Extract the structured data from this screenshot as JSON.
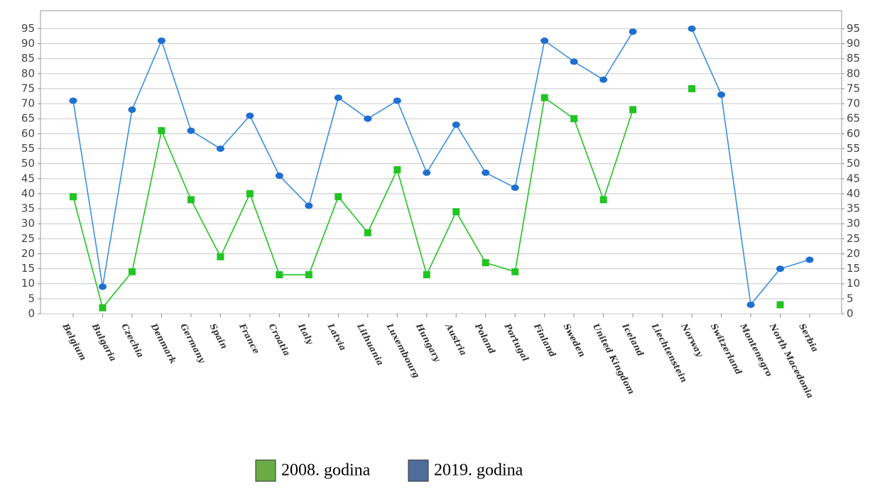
{
  "chart_data": {
    "type": "line",
    "categories": [
      "Belgium",
      "Bulgaria",
      "Czechia",
      "Denmark",
      "Germany",
      "Spain",
      "France",
      "Croatia",
      "Italy",
      "Latvia",
      "Lithuania",
      "Luxembourg",
      "Hungary",
      "Austria",
      "Poland",
      "Portugal",
      "Finland",
      "Sweden",
      "United Kingdom",
      "Iceland",
      "Liechtenstein",
      "Norway",
      "Switzerland",
      "Montenegro",
      "North Macedonia",
      "Serbia"
    ],
    "series": [
      {
        "name": "2008. godina",
        "color": "#22c422",
        "legend_color": "#6aab46",
        "marker": "square",
        "values": [
          39,
          2,
          14,
          61,
          38,
          19,
          40,
          13,
          13,
          39,
          27,
          48,
          13,
          34,
          17,
          14,
          72,
          65,
          38,
          68,
          null,
          75,
          null,
          null,
          3,
          null
        ]
      },
      {
        "name": "2019. godina",
        "color": "#3d8fe0",
        "legend_color": "#4f6d9a",
        "marker": "circle",
        "values": [
          71,
          9,
          68,
          91,
          61,
          55,
          66,
          46,
          36,
          72,
          65,
          71,
          47,
          63,
          47,
          42,
          91,
          84,
          78,
          94,
          null,
          95,
          73,
          3,
          15,
          18
        ]
      }
    ],
    "ylim": [
      0,
      101
    ],
    "yticks": [
      0,
      5,
      10,
      15,
      20,
      25,
      30,
      35,
      40,
      45,
      50,
      55,
      60,
      65,
      70,
      75,
      80,
      85,
      90,
      95
    ],
    "y2lim": [
      0,
      101
    ],
    "y2ticks": [
      0,
      5,
      10,
      15,
      20,
      25,
      30,
      35,
      40,
      45,
      50,
      55,
      60,
      65,
      70,
      75,
      80,
      85,
      90,
      95
    ],
    "grid": true
  }
}
